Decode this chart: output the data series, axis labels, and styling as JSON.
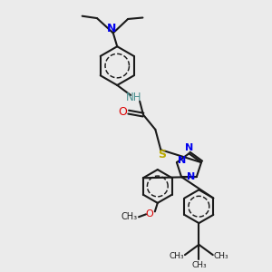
{
  "background_color": "#ebebeb",
  "bond_color": "#1a1a1a",
  "bond_width": 1.5,
  "atom_colors": {
    "N": "#0000ee",
    "O": "#dd0000",
    "S": "#bbaa00",
    "NH": "#4a9090",
    "C": "#1a1a1a"
  },
  "layout": {
    "xlim": [
      0,
      10
    ],
    "ylim": [
      0,
      10
    ]
  }
}
